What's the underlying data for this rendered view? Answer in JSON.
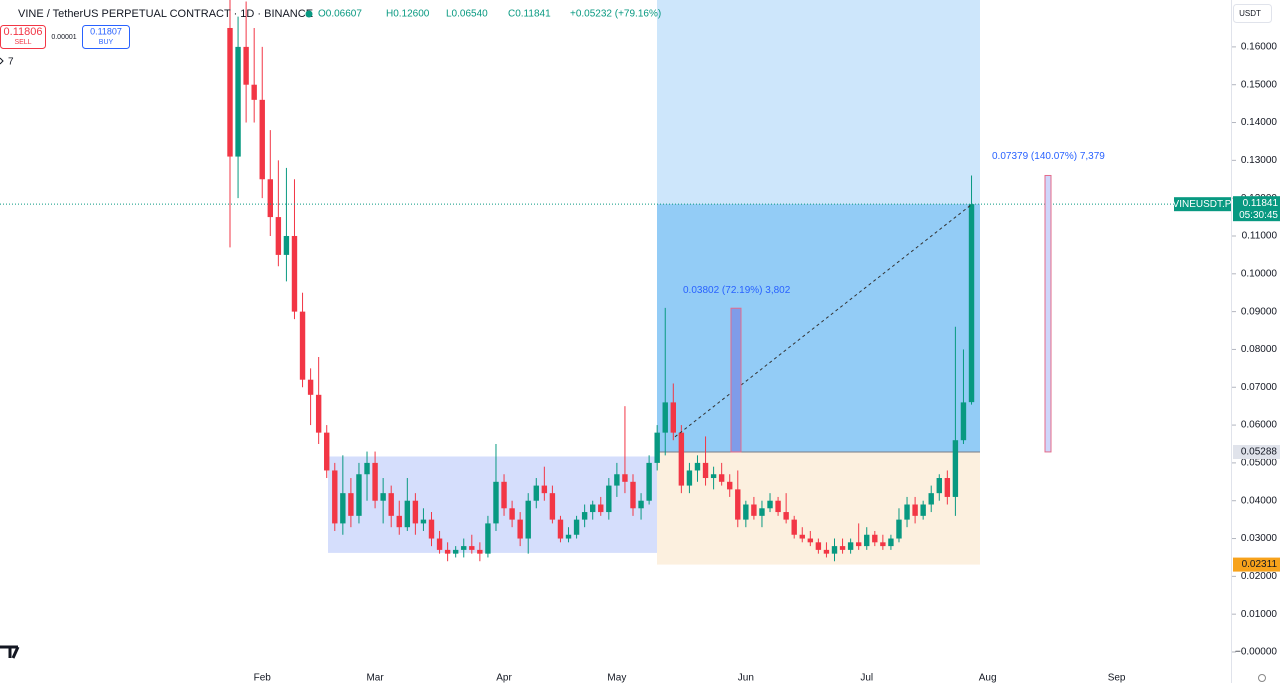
{
  "chart_data": {
    "type": "candlestick",
    "title": "VINE / TetherUS PERPETUAL CONTRACT · 1D · BINANCE",
    "ohlc_legend": [
      "O0.06607",
      "H0.12600",
      "L0.06540",
      "C0.11841",
      "+0.05232 (+79.16%)"
    ],
    "trade_panel": {
      "sell_price": "0.11806",
      "sell": "SELL",
      "spread": "0.00001",
      "buy_price": "0.11807",
      "buy": "BUY"
    },
    "indicator_count": "7",
    "currency": "USDT",
    "categories": [
      null,
      null,
      null,
      null,
      "Feb",
      null,
      null,
      null,
      null,
      null,
      null,
      null,
      null,
      null,
      null,
      null,
      null,
      null,
      "Mar",
      null,
      null,
      null,
      null,
      null,
      null,
      null,
      null,
      null,
      null,
      null,
      null,
      null,
      null,
      null,
      "Apr",
      null,
      null,
      null,
      null,
      null,
      null,
      null,
      null,
      null,
      null,
      null,
      null,
      null,
      "May",
      null,
      null,
      null,
      null,
      null,
      null,
      null,
      null,
      null,
      null,
      null,
      null,
      null,
      null,
      null,
      "Jun",
      null,
      null,
      null,
      null,
      null,
      null,
      null,
      null,
      null,
      null,
      null,
      null,
      null,
      null,
      "Jul",
      null,
      null,
      null,
      null,
      null,
      null,
      null,
      null,
      null,
      null,
      null,
      null,
      null,
      null,
      "Aug",
      null,
      null,
      null,
      null,
      null,
      null,
      null,
      null,
      null,
      null,
      null,
      null,
      null,
      null,
      null,
      "Sep"
    ],
    "open": [
      0.165,
      0.131,
      0.16,
      0.15,
      0.146,
      0.125,
      0.115,
      0.105,
      0.11,
      0.09,
      0.072,
      0.068,
      0.058,
      0.048,
      0.034,
      0.042,
      0.036,
      0.047,
      0.05,
      0.04,
      0.042,
      0.036,
      0.033,
      0.04,
      0.034,
      0.035,
      0.03,
      0.027,
      0.026,
      0.027,
      0.028,
      0.027,
      0.026,
      0.034,
      0.045,
      0.038,
      0.035,
      0.03,
      0.04,
      0.044,
      0.042,
      0.035,
      0.03,
      0.031,
      0.035,
      0.037,
      0.039,
      0.037,
      0.044,
      0.047,
      0.045,
      0.038,
      0.04,
      0.05,
      0.058,
      0.066,
      0.058,
      0.044,
      0.048,
      0.05,
      0.046,
      0.047,
      0.045,
      0.043,
      0.035,
      0.039,
      0.036,
      0.038,
      0.04,
      0.037,
      0.035,
      0.031,
      0.03,
      0.029,
      0.027,
      0.026,
      0.028,
      0.027,
      0.029,
      0.028,
      0.031,
      0.029,
      0.028,
      0.03,
      0.035,
      0.039,
      0.036,
      0.039,
      0.042,
      0.046,
      0.041,
      0.056,
      0.06607,
      null,
      null,
      null,
      null,
      null,
      null,
      null,
      null,
      null,
      null,
      null,
      null,
      null,
      null,
      null,
      null,
      null,
      null
    ],
    "high": [
      0.175,
      0.168,
      0.172,
      0.165,
      0.16,
      0.138,
      0.13,
      0.128,
      0.125,
      0.095,
      0.075,
      0.078,
      0.06,
      0.05,
      0.052,
      0.046,
      0.05,
      0.053,
      0.053,
      0.046,
      0.044,
      0.04,
      0.046,
      0.042,
      0.038,
      0.037,
      0.032,
      0.029,
      0.028,
      0.03,
      0.031,
      0.029,
      0.036,
      0.055,
      0.047,
      0.04,
      0.037,
      0.042,
      0.046,
      0.049,
      0.044,
      0.036,
      0.033,
      0.036,
      0.039,
      0.04,
      0.041,
      0.046,
      0.05,
      0.065,
      0.047,
      0.042,
      0.052,
      0.06,
      0.091,
      0.071,
      0.06,
      0.05,
      0.052,
      0.057,
      0.049,
      0.05,
      0.047,
      0.048,
      0.04,
      0.041,
      0.04,
      0.042,
      0.041,
      0.042,
      0.036,
      0.033,
      0.032,
      0.03,
      0.029,
      0.03,
      0.03,
      0.03,
      0.034,
      0.033,
      0.032,
      0.031,
      0.031,
      0.038,
      0.041,
      0.041,
      0.04,
      0.044,
      0.047,
      0.048,
      0.086,
      0.08,
      0.126,
      null,
      null,
      null,
      null,
      null,
      null,
      null,
      null,
      null,
      null,
      null,
      null,
      null,
      null,
      null,
      null,
      null,
      null
    ],
    "low": [
      0.107,
      0.12,
      0.14,
      0.14,
      0.12,
      0.11,
      0.102,
      0.098,
      0.088,
      0.07,
      0.06,
      0.055,
      0.046,
      0.032,
      0.031,
      0.033,
      0.034,
      0.04,
      0.038,
      0.034,
      0.033,
      0.031,
      0.032,
      0.031,
      0.032,
      0.028,
      0.026,
      0.024,
      0.025,
      0.025,
      0.026,
      0.024,
      0.025,
      0.032,
      0.036,
      0.033,
      0.028,
      0.026,
      0.038,
      0.04,
      0.034,
      0.029,
      0.029,
      0.03,
      0.033,
      0.035,
      0.036,
      0.035,
      0.041,
      0.042,
      0.036,
      0.035,
      0.039,
      0.048,
      0.052,
      0.056,
      0.042,
      0.042,
      0.045,
      0.044,
      0.043,
      0.044,
      0.041,
      0.033,
      0.033,
      0.035,
      0.033,
      0.037,
      0.036,
      0.034,
      0.03,
      0.029,
      0.028,
      0.026,
      0.025,
      0.024,
      0.026,
      0.026,
      0.027,
      0.027,
      0.028,
      0.027,
      0.027,
      0.029,
      0.033,
      0.034,
      0.035,
      0.037,
      0.04,
      0.039,
      0.036,
      0.055,
      0.0654,
      null,
      null,
      null,
      null,
      null,
      null,
      null,
      null,
      null,
      null,
      null,
      null,
      null,
      null,
      null,
      null,
      null,
      null
    ],
    "close": [
      0.131,
      0.16,
      0.15,
      0.146,
      0.125,
      0.115,
      0.105,
      0.11,
      0.09,
      0.072,
      0.068,
      0.058,
      0.048,
      0.034,
      0.042,
      0.036,
      0.047,
      0.05,
      0.04,
      0.042,
      0.036,
      0.033,
      0.04,
      0.034,
      0.035,
      0.03,
      0.027,
      0.026,
      0.027,
      0.028,
      0.027,
      0.026,
      0.034,
      0.045,
      0.038,
      0.035,
      0.03,
      0.04,
      0.044,
      0.042,
      0.035,
      0.03,
      0.031,
      0.035,
      0.037,
      0.039,
      0.037,
      0.044,
      0.047,
      0.045,
      0.038,
      0.04,
      0.05,
      0.058,
      0.066,
      0.058,
      0.044,
      0.048,
      0.05,
      0.046,
      0.047,
      0.045,
      0.043,
      0.035,
      0.039,
      0.036,
      0.038,
      0.04,
      0.037,
      0.035,
      0.031,
      0.03,
      0.029,
      0.027,
      0.026,
      0.028,
      0.027,
      0.029,
      0.028,
      0.031,
      0.029,
      0.028,
      0.03,
      0.035,
      0.039,
      0.036,
      0.039,
      0.042,
      0.046,
      0.041,
      0.056,
      0.066,
      0.11841,
      null,
      null,
      null,
      null,
      null,
      null,
      null,
      null,
      null,
      null,
      null,
      null,
      null,
      null,
      null,
      null,
      null,
      null
    ],
    "up_color": "#089981",
    "down_color": "#f23645",
    "ylim": [
      -0.0082,
      0.1724
    ],
    "yticks": [
      {
        "value": 0,
        "label": "−0.00000"
      },
      {
        "value": 0.01,
        "label": "0.01000"
      },
      {
        "value": 0.02,
        "label": "0.02000"
      },
      {
        "value": 0.03,
        "label": "0.03000"
      },
      {
        "value": 0.04,
        "label": "0.04000"
      },
      {
        "value": 0.05,
        "label": "0.05000"
      },
      {
        "value": 0.06,
        "label": "0.06000"
      },
      {
        "value": 0.07,
        "label": "0.07000"
      },
      {
        "value": 0.08,
        "label": "0.08000"
      },
      {
        "value": 0.09,
        "label": "0.09000"
      },
      {
        "value": 0.1,
        "label": "0.10000"
      },
      {
        "value": 0.11,
        "label": "0.11000"
      },
      {
        "value": 0.12,
        "label": "0.12000"
      },
      {
        "value": 0.13,
        "label": "0.13000"
      },
      {
        "value": 0.14,
        "label": "0.14000"
      },
      {
        "value": 0.15,
        "label": "0.15000"
      },
      {
        "value": 0.16,
        "label": "0.16000"
      }
    ],
    "last_price": {
      "symbol": "VINEUSDT.P",
      "price": {
        "value": 0.11841,
        "label": "0.11841"
      },
      "countdown": "05:30:45"
    },
    "position": {
      "entry": {
        "value": 0.05288,
        "label": "0.05288"
      },
      "stop": {
        "value": 0.02311,
        "label": "0.02311"
      },
      "target": 0.1724
    },
    "range_box": {
      "top": 0.0517,
      "bottom": 0.0262
    },
    "measures": [
      {
        "label": "0.03802 (72.19%) 3,802",
        "from": 0.0529,
        "to": 0.0909
      },
      {
        "label": "0.07379 (140.07%) 7,379",
        "from": 0.0529,
        "to": 0.126
      }
    ],
    "trend_line": {
      "from": 0.0569,
      "to": 0.11841
    }
  }
}
